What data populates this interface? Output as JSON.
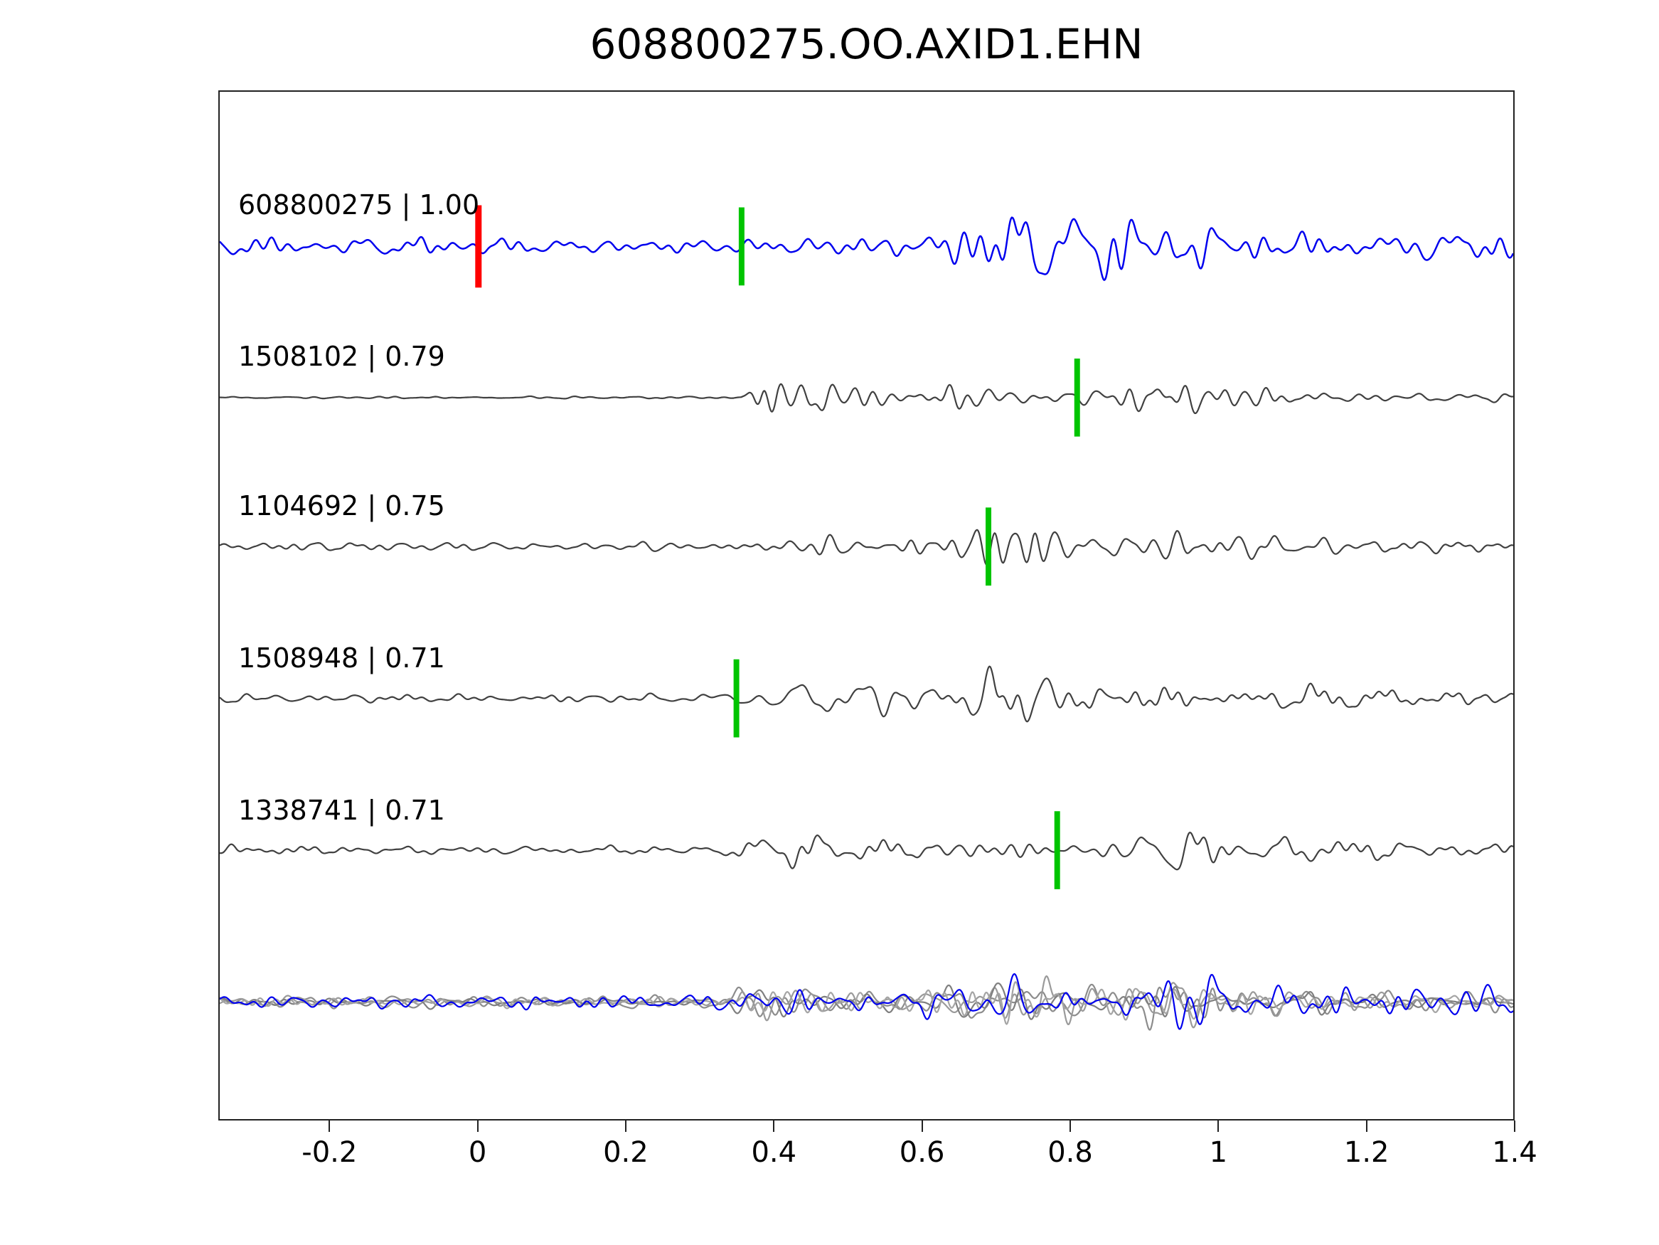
{
  "title": "608800275.OO.AXID1.EHN",
  "chart_data": {
    "type": "line",
    "title": "608800275.OO.AXID1.EHN",
    "xlabel": "",
    "ylabel": "",
    "xlim": [
      -0.35,
      1.4
    ],
    "grid": false,
    "legend": "none",
    "x_ticks": [
      -0.2,
      0,
      0.2,
      0.4,
      0.6,
      0.8,
      1,
      1.2,
      1.4
    ],
    "x_tick_labels": [
      "-0.2",
      "0",
      "0.2",
      "0.4",
      "0.6",
      "0.8",
      "1",
      "1.2",
      "1.4"
    ],
    "colors": {
      "template_trace": "#0000ee",
      "match_trace": "#404040",
      "pick_marker": "#00c400",
      "origin_marker": "#ff0000",
      "axis": "#222222"
    },
    "traces": [
      {
        "id": "608800275",
        "correlation": 1.0,
        "label": "608800275 | 1.00",
        "color": "#0000ee",
        "pick_x": 0.356,
        "origin_marker_x": 0.0,
        "seed": 101,
        "envelope": [
          [
            -0.35,
            14
          ],
          [
            0.05,
            13
          ],
          [
            0.3,
            14
          ],
          [
            0.42,
            18
          ],
          [
            0.55,
            16
          ],
          [
            0.62,
            28
          ],
          [
            0.68,
            40
          ],
          [
            0.73,
            62
          ],
          [
            0.78,
            42
          ],
          [
            0.84,
            50
          ],
          [
            0.9,
            40
          ],
          [
            0.96,
            58
          ],
          [
            1.02,
            30
          ],
          [
            1.08,
            40
          ],
          [
            1.15,
            30
          ],
          [
            1.25,
            26
          ],
          [
            1.35,
            22
          ],
          [
            1.4,
            30
          ]
        ]
      },
      {
        "id": "1508102",
        "correlation": 0.79,
        "label": "1508102 | 0.79",
        "color": "#404040",
        "pick_x": 0.81,
        "seed": 202,
        "envelope": [
          [
            -0.35,
            2.5
          ],
          [
            0.355,
            2.5
          ],
          [
            0.385,
            70
          ],
          [
            0.43,
            55
          ],
          [
            0.5,
            30
          ],
          [
            0.58,
            28
          ],
          [
            0.66,
            30
          ],
          [
            0.72,
            25
          ],
          [
            0.8,
            22
          ],
          [
            0.88,
            30
          ],
          [
            0.95,
            28
          ],
          [
            1.05,
            14
          ],
          [
            1.15,
            12
          ],
          [
            1.3,
            10
          ],
          [
            1.4,
            9
          ]
        ]
      },
      {
        "id": "1104692",
        "correlation": 0.75,
        "label": "1104692 | 0.75",
        "color": "#404040",
        "pick_x": 0.69,
        "seed": 303,
        "envelope": [
          [
            -0.35,
            9
          ],
          [
            0.25,
            9
          ],
          [
            0.35,
            12
          ],
          [
            0.45,
            18
          ],
          [
            0.52,
            16
          ],
          [
            0.6,
            22
          ],
          [
            0.66,
            30
          ],
          [
            0.71,
            55
          ],
          [
            0.75,
            60
          ],
          [
            0.8,
            28
          ],
          [
            0.88,
            24
          ],
          [
            0.95,
            22
          ],
          [
            1.05,
            20
          ],
          [
            1.15,
            16
          ],
          [
            1.3,
            12
          ],
          [
            1.4,
            10
          ]
        ]
      },
      {
        "id": "1508948",
        "correlation": 0.71,
        "label": "1508948 | 0.71",
        "color": "#404040",
        "pick_x": 0.349,
        "seed": 404,
        "envelope": [
          [
            -0.35,
            8
          ],
          [
            0.28,
            8
          ],
          [
            0.35,
            22
          ],
          [
            0.42,
            30
          ],
          [
            0.5,
            26
          ],
          [
            0.58,
            28
          ],
          [
            0.64,
            30
          ],
          [
            0.7,
            58
          ],
          [
            0.76,
            40
          ],
          [
            0.83,
            32
          ],
          [
            0.9,
            26
          ],
          [
            1.0,
            20
          ],
          [
            1.1,
            22
          ],
          [
            1.25,
            16
          ],
          [
            1.4,
            13
          ]
        ]
      },
      {
        "id": "1338741",
        "correlation": 0.71,
        "label": "1338741 | 0.71",
        "color": "#404040",
        "pick_x": 0.783,
        "seed": 505,
        "envelope": [
          [
            -0.35,
            9
          ],
          [
            0.3,
            10
          ],
          [
            0.38,
            28
          ],
          [
            0.46,
            24
          ],
          [
            0.55,
            26
          ],
          [
            0.63,
            24
          ],
          [
            0.7,
            26
          ],
          [
            0.78,
            20
          ],
          [
            0.86,
            30
          ],
          [
            0.92,
            62
          ],
          [
            0.98,
            40
          ],
          [
            1.06,
            28
          ],
          [
            1.15,
            24
          ],
          [
            1.28,
            18
          ],
          [
            1.4,
            14
          ]
        ]
      }
    ],
    "overlay": {
      "description": "all matched traces superimposed with template",
      "traces": [
        {
          "color": "#8c8c8c",
          "seed": 606,
          "envelope": [
            [
              -0.35,
              10
            ],
            [
              0.33,
              10
            ],
            [
              0.4,
              45
            ],
            [
              0.48,
              30
            ],
            [
              0.58,
              28
            ],
            [
              0.66,
              35
            ],
            [
              0.72,
              55
            ],
            [
              0.8,
              30
            ],
            [
              0.88,
              35
            ],
            [
              0.95,
              50
            ],
            [
              1.03,
              28
            ],
            [
              1.12,
              22
            ],
            [
              1.25,
              18
            ],
            [
              1.4,
              15
            ]
          ]
        },
        {
          "color": "#9a9a9a",
          "seed": 707,
          "envelope": [
            [
              -0.35,
              9
            ],
            [
              0.34,
              9
            ],
            [
              0.41,
              38
            ],
            [
              0.5,
              28
            ],
            [
              0.6,
              30
            ],
            [
              0.68,
              40
            ],
            [
              0.74,
              45
            ],
            [
              0.82,
              28
            ],
            [
              0.9,
              30
            ],
            [
              0.97,
              40
            ],
            [
              1.05,
              25
            ],
            [
              1.15,
              20
            ],
            [
              1.3,
              16
            ],
            [
              1.4,
              14
            ]
          ]
        },
        {
          "color": "#7f7f7f",
          "seed": 808,
          "envelope": [
            [
              -0.35,
              10
            ],
            [
              0.32,
              10
            ],
            [
              0.4,
              35
            ],
            [
              0.5,
              26
            ],
            [
              0.6,
              26
            ],
            [
              0.7,
              50
            ],
            [
              0.78,
              32
            ],
            [
              0.86,
              30
            ],
            [
              0.94,
              55
            ],
            [
              1.02,
              30
            ],
            [
              1.1,
              22
            ],
            [
              1.25,
              18
            ],
            [
              1.4,
              14
            ]
          ]
        },
        {
          "color": "#a5a5a5",
          "seed": 909,
          "envelope": [
            [
              -0.35,
              9
            ],
            [
              0.33,
              9
            ],
            [
              0.42,
              30
            ],
            [
              0.52,
              24
            ],
            [
              0.62,
              28
            ],
            [
              0.7,
              40
            ],
            [
              0.8,
              26
            ],
            [
              0.9,
              35
            ],
            [
              0.98,
              35
            ],
            [
              1.08,
              22
            ],
            [
              1.2,
              18
            ],
            [
              1.4,
              14
            ]
          ]
        },
        {
          "color": "#0000ee",
          "seed": 111,
          "envelope": [
            [
              -0.35,
              12
            ],
            [
              0.3,
              12
            ],
            [
              0.42,
              20
            ],
            [
              0.55,
              18
            ],
            [
              0.64,
              30
            ],
            [
              0.72,
              45
            ],
            [
              0.8,
              35
            ],
            [
              0.88,
              40
            ],
            [
              0.96,
              55
            ],
            [
              1.04,
              30
            ],
            [
              1.12,
              35
            ],
            [
              1.25,
              22
            ],
            [
              1.4,
              25
            ]
          ]
        }
      ]
    }
  }
}
